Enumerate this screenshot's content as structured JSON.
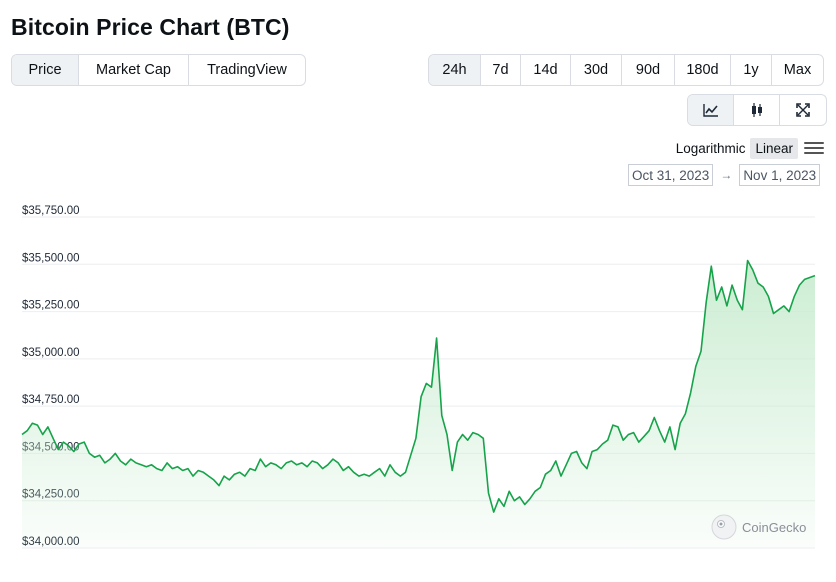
{
  "header": {
    "title": "Bitcoin Price Chart (BTC)"
  },
  "view_tabs": [
    {
      "label": "Price",
      "active": true
    },
    {
      "label": "Market Cap",
      "active": false
    },
    {
      "label": "TradingView",
      "active": false
    }
  ],
  "range_tabs": [
    {
      "label": "24h",
      "active": true
    },
    {
      "label": "7d",
      "active": false
    },
    {
      "label": "14d",
      "active": false
    },
    {
      "label": "30d",
      "active": false
    },
    {
      "label": "90d",
      "active": false
    },
    {
      "label": "180d",
      "active": false
    },
    {
      "label": "1y",
      "active": false
    },
    {
      "label": "Max",
      "active": false
    }
  ],
  "chart_types": [
    {
      "icon": "line-chart-icon",
      "active": true
    },
    {
      "icon": "candlestick-icon",
      "active": false
    },
    {
      "icon": "expand-icon",
      "active": false
    }
  ],
  "scale": {
    "log_label": "Logarithmic",
    "linear_label": "Linear",
    "selected": "Linear"
  },
  "date_range": {
    "from": "Oct 31, 2023",
    "to": "Nov 1, 2023",
    "arrow": "→"
  },
  "watermark": "CoinGecko",
  "colors": {
    "line": "#16a34a",
    "fill_top": "#c9ecd0",
    "grid": "#eceef1",
    "active_tab": "#eff2f5"
  },
  "chart_data": {
    "type": "area",
    "title": "",
    "xlabel": "",
    "ylabel": "",
    "ylim": [
      34000,
      35750
    ],
    "yticks": [
      {
        "value": 35750,
        "label": "$35,750.00"
      },
      {
        "value": 35500,
        "label": "$35,500.00"
      },
      {
        "value": 35250,
        "label": "$35,250.00"
      },
      {
        "value": 35000,
        "label": "$35,000.00"
      },
      {
        "value": 34750,
        "label": "$34,750.00"
      },
      {
        "value": 34500,
        "label": "$34,500.00"
      },
      {
        "value": 34250,
        "label": "$34,250.00"
      },
      {
        "value": 34000,
        "label": "$34,000.00"
      }
    ],
    "grid": true,
    "series": [
      {
        "values": [
          34600,
          34620,
          34660,
          34650,
          34600,
          34640,
          34580,
          34520,
          34560,
          34540,
          34510,
          34550,
          34560,
          34500,
          34480,
          34490,
          34450,
          34470,
          34500,
          34460,
          34440,
          34470,
          34450,
          34440,
          34430,
          34440,
          34420,
          34410,
          34450,
          34420,
          34430,
          34410,
          34420,
          34380,
          34410,
          34400,
          34380,
          34360,
          34330,
          34380,
          34360,
          34390,
          34400,
          34380,
          34420,
          34410,
          34470,
          34430,
          34450,
          34440,
          34420,
          34450,
          34460,
          34440,
          34450,
          34430,
          34460,
          34450,
          34420,
          34440,
          34470,
          34450,
          34410,
          34430,
          34400,
          34380,
          34390,
          34380,
          34400,
          34420,
          34380,
          34440,
          34400,
          34380,
          34400,
          34490,
          34580,
          34800,
          34870,
          34850,
          35110,
          34700,
          34600,
          34410,
          34560,
          34600,
          34570,
          34610,
          34600,
          34580,
          34290,
          34190,
          34260,
          34220,
          34300,
          34250,
          34270,
          34230,
          34260,
          34300,
          34320,
          34390,
          34410,
          34460,
          34380,
          34440,
          34500,
          34510,
          34450,
          34420,
          34510,
          34520,
          34550,
          34570,
          34650,
          34640,
          34570,
          34600,
          34610,
          34560,
          34590,
          34620,
          34690,
          34620,
          34560,
          34640,
          34520,
          34660,
          34710,
          34820,
          34960,
          35040,
          35300,
          35490,
          35310,
          35380,
          35280,
          35390,
          35310,
          35260,
          35520,
          35470,
          35400,
          35380,
          35330,
          35240,
          35260,
          35280,
          35250,
          35330,
          35390,
          35420,
          35430,
          35440
        ]
      }
    ]
  }
}
